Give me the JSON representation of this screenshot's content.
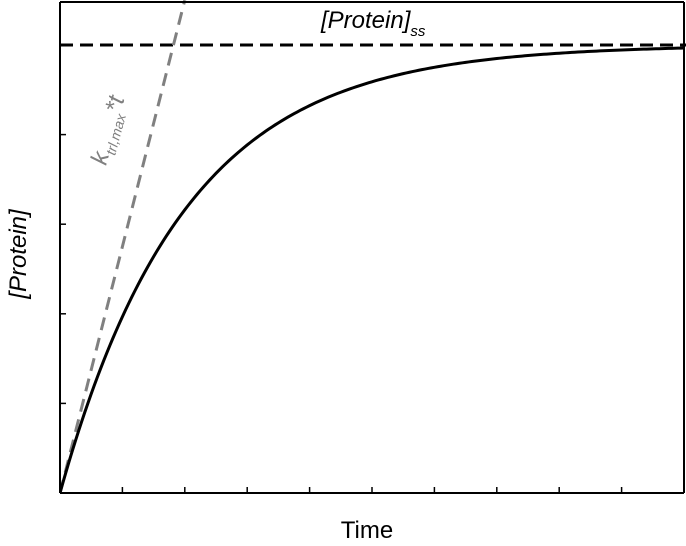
{
  "chart_data": {
    "type": "line",
    "xlabel": "Time",
    "ylabel": "[Protein]",
    "xlim": [
      0,
      10
    ],
    "ylim": [
      0,
      1
    ],
    "grid": false,
    "x_ticks_count": 10,
    "y_ticks_count": 5,
    "series": [
      {
        "style": "solid",
        "color": "#000000",
        "function": "1 - exp(-t/2)",
        "x": [
          0,
          0.5,
          1,
          1.5,
          2,
          2.5,
          3,
          4,
          5,
          6,
          7,
          8,
          9,
          10
        ],
        "values": [
          0,
          0.221,
          0.393,
          0.528,
          0.632,
          0.713,
          0.777,
          0.865,
          0.918,
          0.95,
          0.97,
          0.982,
          0.989,
          0.993
        ]
      },
      {
        "style": "dashed",
        "color": "#808080",
        "x": [
          0,
          2
        ],
        "values": [
          0,
          1.1
        ]
      },
      {
        "style": "dashed",
        "color": "#000000",
        "x": [
          0,
          10
        ],
        "values": [
          1,
          1
        ]
      }
    ],
    "annotations": {
      "steady_state": {
        "main": "[Protein]",
        "sub": "ss"
      },
      "initial_slope": {
        "k": "k",
        "sub": "trl,max",
        "tail": "*t",
        "color": "#808080"
      }
    }
  }
}
